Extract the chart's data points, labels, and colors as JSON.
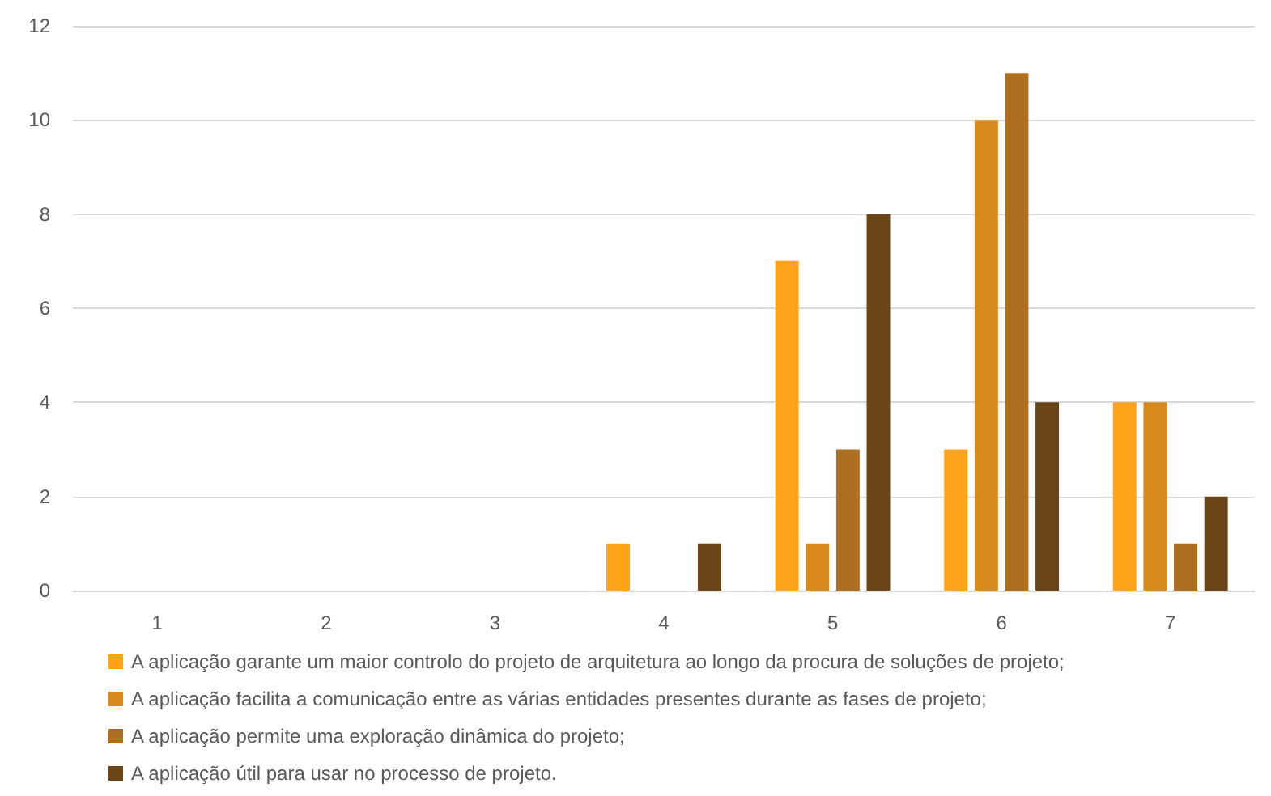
{
  "chart_data": {
    "type": "bar",
    "categories": [
      "1",
      "2",
      "3",
      "4",
      "5",
      "6",
      "7"
    ],
    "series": [
      {
        "name": "A aplicação garante um maior controlo do projeto de arquitetura ao longo da procura de soluções de projeto;",
        "color": "#ffa31a",
        "values": [
          0,
          0,
          0,
          1,
          7,
          3,
          4
        ]
      },
      {
        "name": "A aplicação facilita a comunicação entre as várias entidades presentes durante as fases de projeto;",
        "color": "#d98a1c",
        "values": [
          0,
          0,
          0,
          0,
          1,
          10,
          4
        ]
      },
      {
        "name": "A aplicação permite uma exploração dinâmica do projeto;",
        "color": "#ad6f1f",
        "values": [
          0,
          0,
          0,
          0,
          3,
          11,
          1
        ]
      },
      {
        "name": "A aplicação útil para usar no processo de projeto.",
        "color": "#694517",
        "values": [
          0,
          0,
          0,
          1,
          8,
          4,
          2
        ]
      }
    ],
    "ylim": [
      0,
      12
    ],
    "yticks": [
      0,
      2,
      4,
      6,
      8,
      10,
      12
    ],
    "grid": "y",
    "legend": "bottom"
  }
}
